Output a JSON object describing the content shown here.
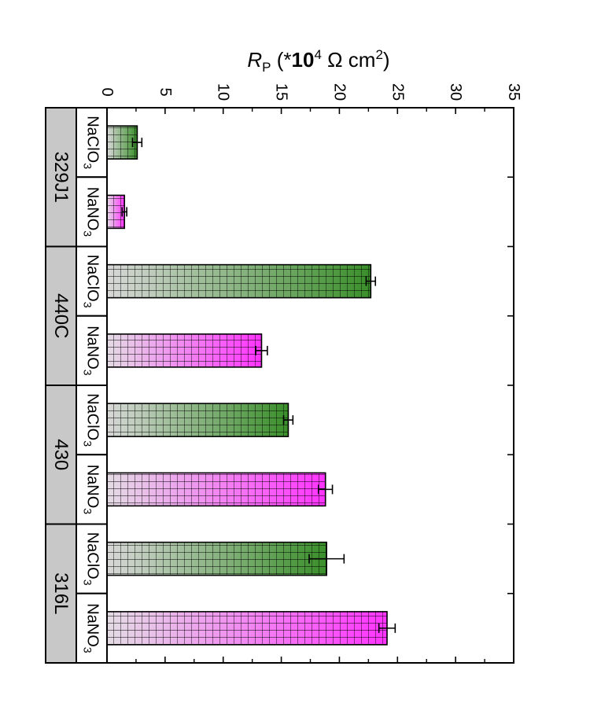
{
  "chart_data": {
    "type": "bar",
    "orientation": "horizontal-bars-rotated",
    "ylabel": {
      "symbol": "R",
      "subscript": "P",
      "prefix": " (*",
      "bold": "10",
      "sup": "4",
      "unit": " Ω cm",
      "unit_sup": "2",
      "suffix": ")"
    },
    "xlim": [
      0,
      35
    ],
    "ticks": [
      0,
      5,
      10,
      15,
      20,
      25,
      30,
      35
    ],
    "groups": [
      {
        "name": "329J1",
        "bars": [
          {
            "label": "NaClO",
            "sub": "3",
            "value": 2.6,
            "error": 0.4,
            "series": "NaClO3"
          },
          {
            "label": "NaNO",
            "sub": "3",
            "value": 1.5,
            "error": 0.2,
            "series": "NaNO3"
          }
        ]
      },
      {
        "name": "440C",
        "bars": [
          {
            "label": "NaClO",
            "sub": "3",
            "value": 22.7,
            "error": 0.4,
            "series": "NaClO3"
          },
          {
            "label": "NaNO",
            "sub": "3",
            "value": 13.3,
            "error": 0.5,
            "series": "NaNO3"
          }
        ]
      },
      {
        "name": "430",
        "bars": [
          {
            "label": "NaClO",
            "sub": "3",
            "value": 15.6,
            "error": 0.4,
            "series": "NaClO3"
          },
          {
            "label": "NaNO",
            "sub": "3",
            "value": 18.8,
            "error": 0.6,
            "series": "NaNO3"
          }
        ]
      },
      {
        "name": "316L",
        "bars": [
          {
            "label": "NaClO",
            "sub": "3",
            "value": 18.9,
            "error": 1.5,
            "series": "NaClO3"
          },
          {
            "label": "NaNO",
            "sub": "3",
            "value": 24.1,
            "error": 0.7,
            "series": "NaNO3"
          }
        ]
      }
    ],
    "colors": {
      "NaClO3_start": "#d8d8d8",
      "NaClO3_end": "#3a8f2a",
      "NaNO3_start": "#e4dce4",
      "NaNO3_end": "#ff33ff",
      "group_fill": "#c8c8c8",
      "grid": "#000000"
    }
  }
}
